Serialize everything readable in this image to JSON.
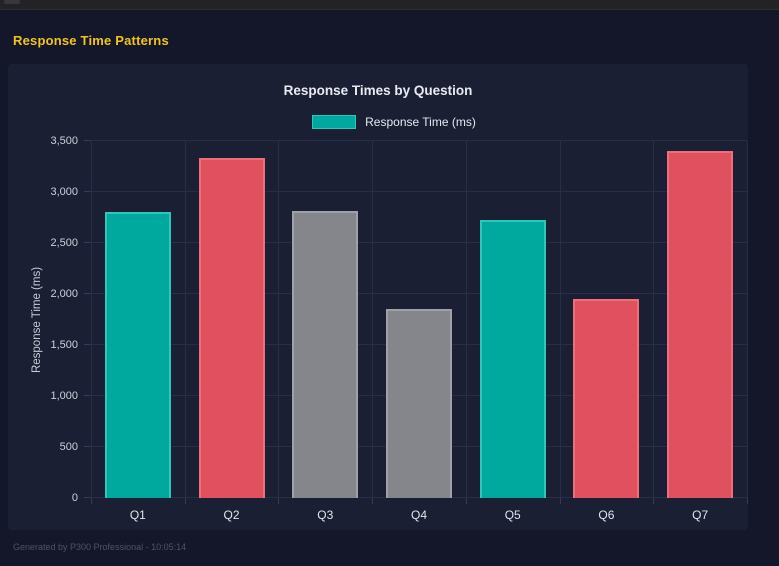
{
  "header": {
    "title": "Response Time Patterns"
  },
  "footer": {
    "text": "Generated by P300 Professional - 10:05:14"
  },
  "colors": {
    "accent_yellow": "#f2c41d",
    "teal": "#00a99d",
    "red": "#e0505e",
    "gray": "#85868c",
    "page_bg": "#14172a",
    "card_bg": "#1b1f34"
  },
  "chart_data": {
    "type": "bar",
    "title": "Response Times by Question",
    "legend": [
      {
        "label": "Response Time (ms)",
        "color": "#00a99d",
        "border": "#2fc7ba"
      }
    ],
    "legend_position": "top",
    "categories": [
      "Q1",
      "Q2",
      "Q3",
      "Q4",
      "Q5",
      "Q6",
      "Q7"
    ],
    "series": [
      {
        "name": "Response Time (ms)",
        "values": [
          2800,
          3330,
          2810,
          1850,
          2730,
          1950,
          3400
        ]
      }
    ],
    "bar_fill_colors": [
      "#00a99d",
      "#e0505e",
      "#85868c",
      "#85868c",
      "#00a99d",
      "#e0505e",
      "#e0505e"
    ],
    "bar_border_colors": [
      "#2fc7ba",
      "#ef6e7b",
      "#9fa1a7",
      "#9fa1a7",
      "#2fc7ba",
      "#ef6e7b",
      "#ef6e7b"
    ],
    "xlabel": "",
    "ylabel": "Response Time (ms)",
    "ylim": [
      0,
      3500
    ],
    "ytick_labels": [
      "0",
      "500",
      "1,000",
      "1,500",
      "2,000",
      "2,500",
      "3,000",
      "3,500"
    ],
    "grid": true
  }
}
